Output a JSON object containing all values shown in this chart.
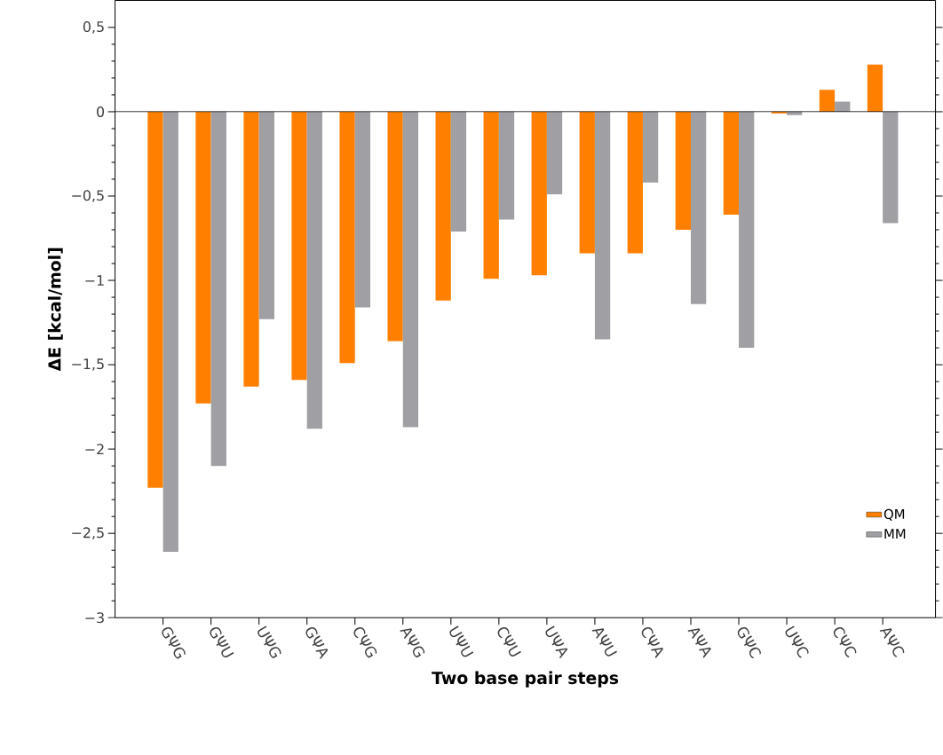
{
  "chart_data": {
    "type": "bar",
    "xlabel": "Two base pair steps",
    "ylabel": "ΔE [kcal/mol]",
    "categories": [
      "GΨG",
      "GΨU",
      "UΨG",
      "GΨA",
      "CΨG",
      "AΨG",
      "UΨU",
      "CΨU",
      "UΨA",
      "AΨU",
      "CΨA",
      "AΨA",
      "GΨC",
      "UΨC",
      "CΨC",
      "AΨC"
    ],
    "series": [
      {
        "name": "QM",
        "color": "#ff8000",
        "values": [
          -2.23,
          -1.73,
          -1.63,
          -1.59,
          -1.49,
          -1.36,
          -1.12,
          -0.99,
          -0.97,
          -0.84,
          -0.84,
          -0.7,
          -0.61,
          -0.01,
          0.13,
          0.28
        ]
      },
      {
        "name": "MM",
        "color": "#a0a0a4",
        "values": [
          -2.61,
          -2.1,
          -1.23,
          -1.88,
          -1.16,
          -1.87,
          -0.71,
          -0.64,
          -0.49,
          -1.35,
          -0.42,
          -1.14,
          -1.4,
          -0.02,
          0.06,
          -0.66
        ]
      }
    ],
    "ylim": [
      -3,
      0.66
    ],
    "yticks": [
      {
        "value": -3,
        "label": "−3"
      },
      {
        "value": -2.5,
        "label": "−2,5"
      },
      {
        "value": -2,
        "label": "−2"
      },
      {
        "value": -1.5,
        "label": "−1,5"
      },
      {
        "value": -1,
        "label": "−1"
      },
      {
        "value": -0.5,
        "label": "−0,5"
      },
      0,
      {
        "value": 0.5,
        "label": "0,5"
      }
    ],
    "legend": "bottom right"
  }
}
